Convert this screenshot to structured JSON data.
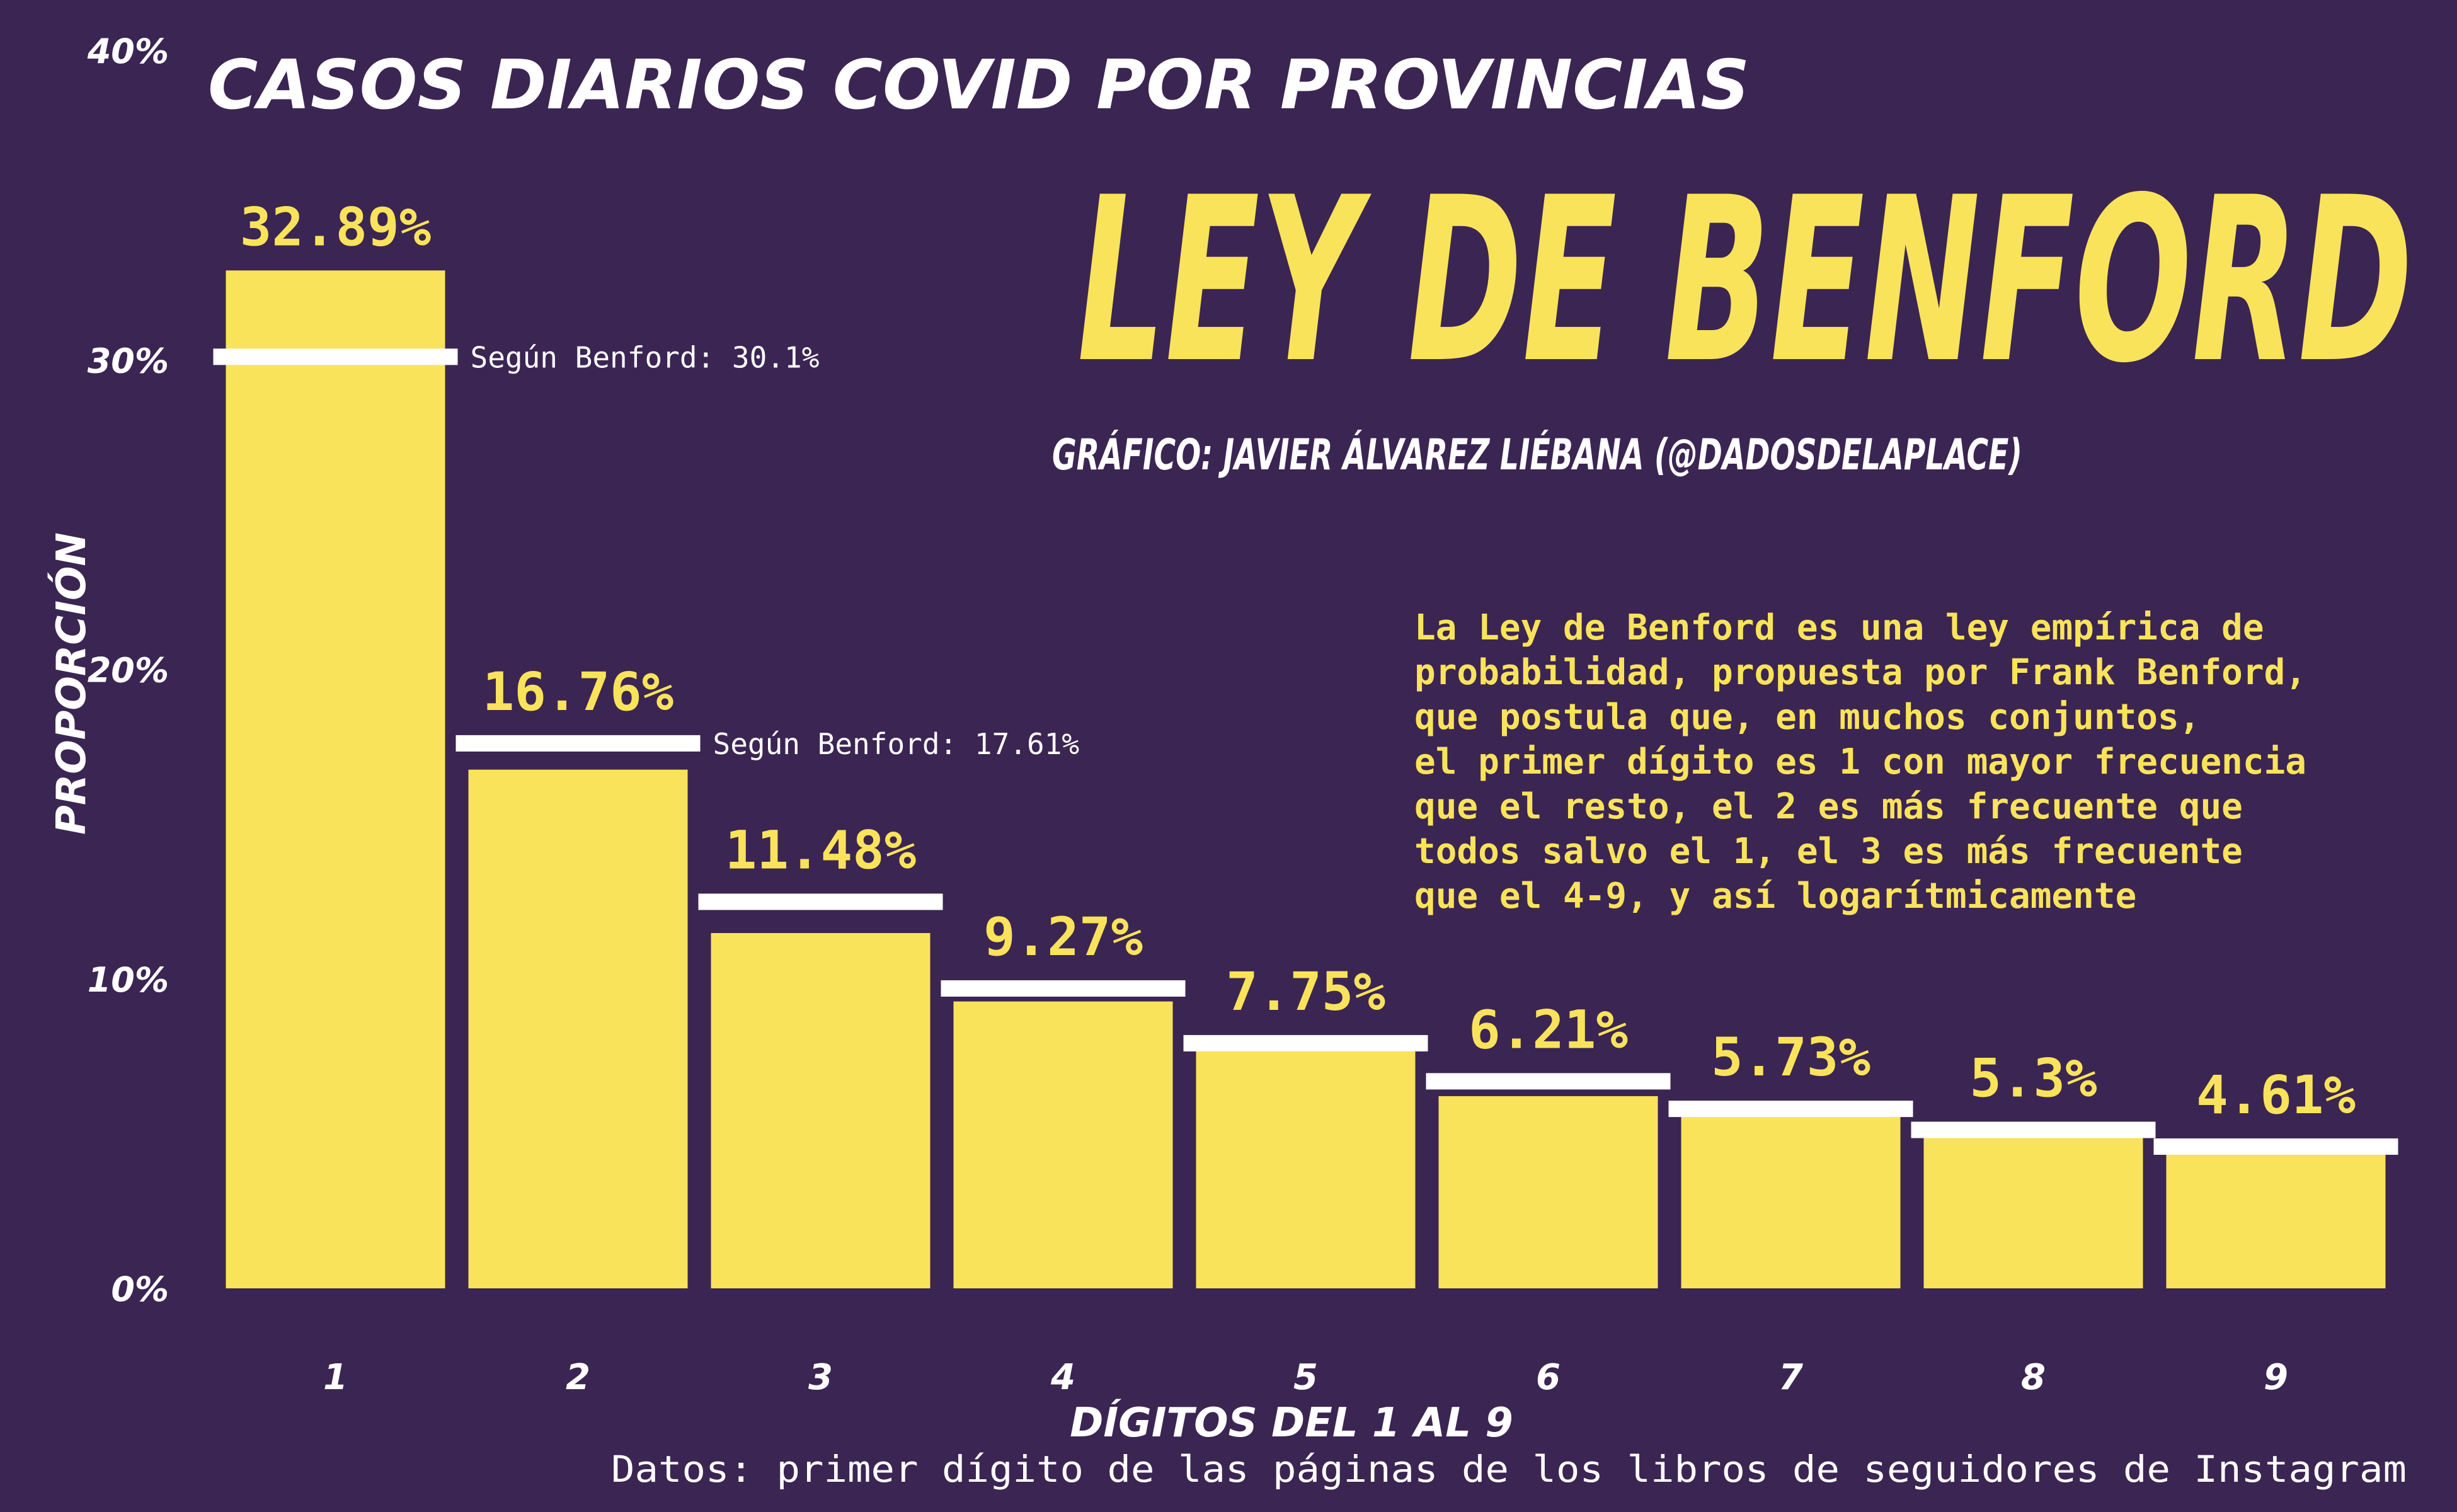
{
  "texts": {
    "title": "CASOS DIARIOS COVID POR PROVINCIAS",
    "headline": "LEY DE BENFORD",
    "credit": "GRÁFICO: JAVIER ÁLVAREZ LIÉBANA (@DADOSDELAPLACE)",
    "description": [
      "La Ley de Benford es una ley empírica de",
      "probabilidad, propuesta por Frank Benford,",
      "que postula que, en muchos conjuntos,",
      "el primer dígito es 1 con mayor frecuencia",
      "que el resto, el 2 es más frecuente que",
      "todos salvo el 1, el 3 es más frecuente",
      "que el 4-9, y así logarítmicamente"
    ],
    "caption": "Datos: primer dígito de las páginas de los libros de seguidores de Instagram"
  },
  "colors": {
    "background": "#3b2553",
    "bar": "#f9e35a",
    "benford_line": "#ffffff",
    "text_light": "#ffffff",
    "text_accent": "#f9e35a"
  },
  "chart_data": {
    "type": "bar",
    "xlabel": "DÍGITOS DEL 1 AL 9",
    "ylabel": "PROPORCIÓN",
    "ylim": [
      0,
      40
    ],
    "yticks": [
      0,
      10,
      20,
      30,
      40
    ],
    "ytick_labels": [
      "0%",
      "10%",
      "20%",
      "30%",
      "40%"
    ],
    "categories": [
      "1",
      "2",
      "3",
      "4",
      "5",
      "6",
      "7",
      "8",
      "9"
    ],
    "values": [
      32.89,
      16.76,
      11.48,
      9.27,
      7.75,
      6.21,
      5.73,
      5.3,
      4.61
    ],
    "value_labels": [
      "32.89%",
      "16.76%",
      "11.48%",
      "9.27%",
      "7.75%",
      "6.21%",
      "5.73%",
      "5.3%",
      "4.61%"
    ],
    "benford_values": [
      30.1,
      17.61,
      12.49,
      9.69,
      7.92,
      6.69,
      5.8,
      5.12,
      4.58
    ],
    "benford_annotations": [
      {
        "index": 0,
        "text": "Según Benford: 30.1%"
      },
      {
        "index": 1,
        "text": "Según Benford: 17.61%"
      }
    ]
  }
}
